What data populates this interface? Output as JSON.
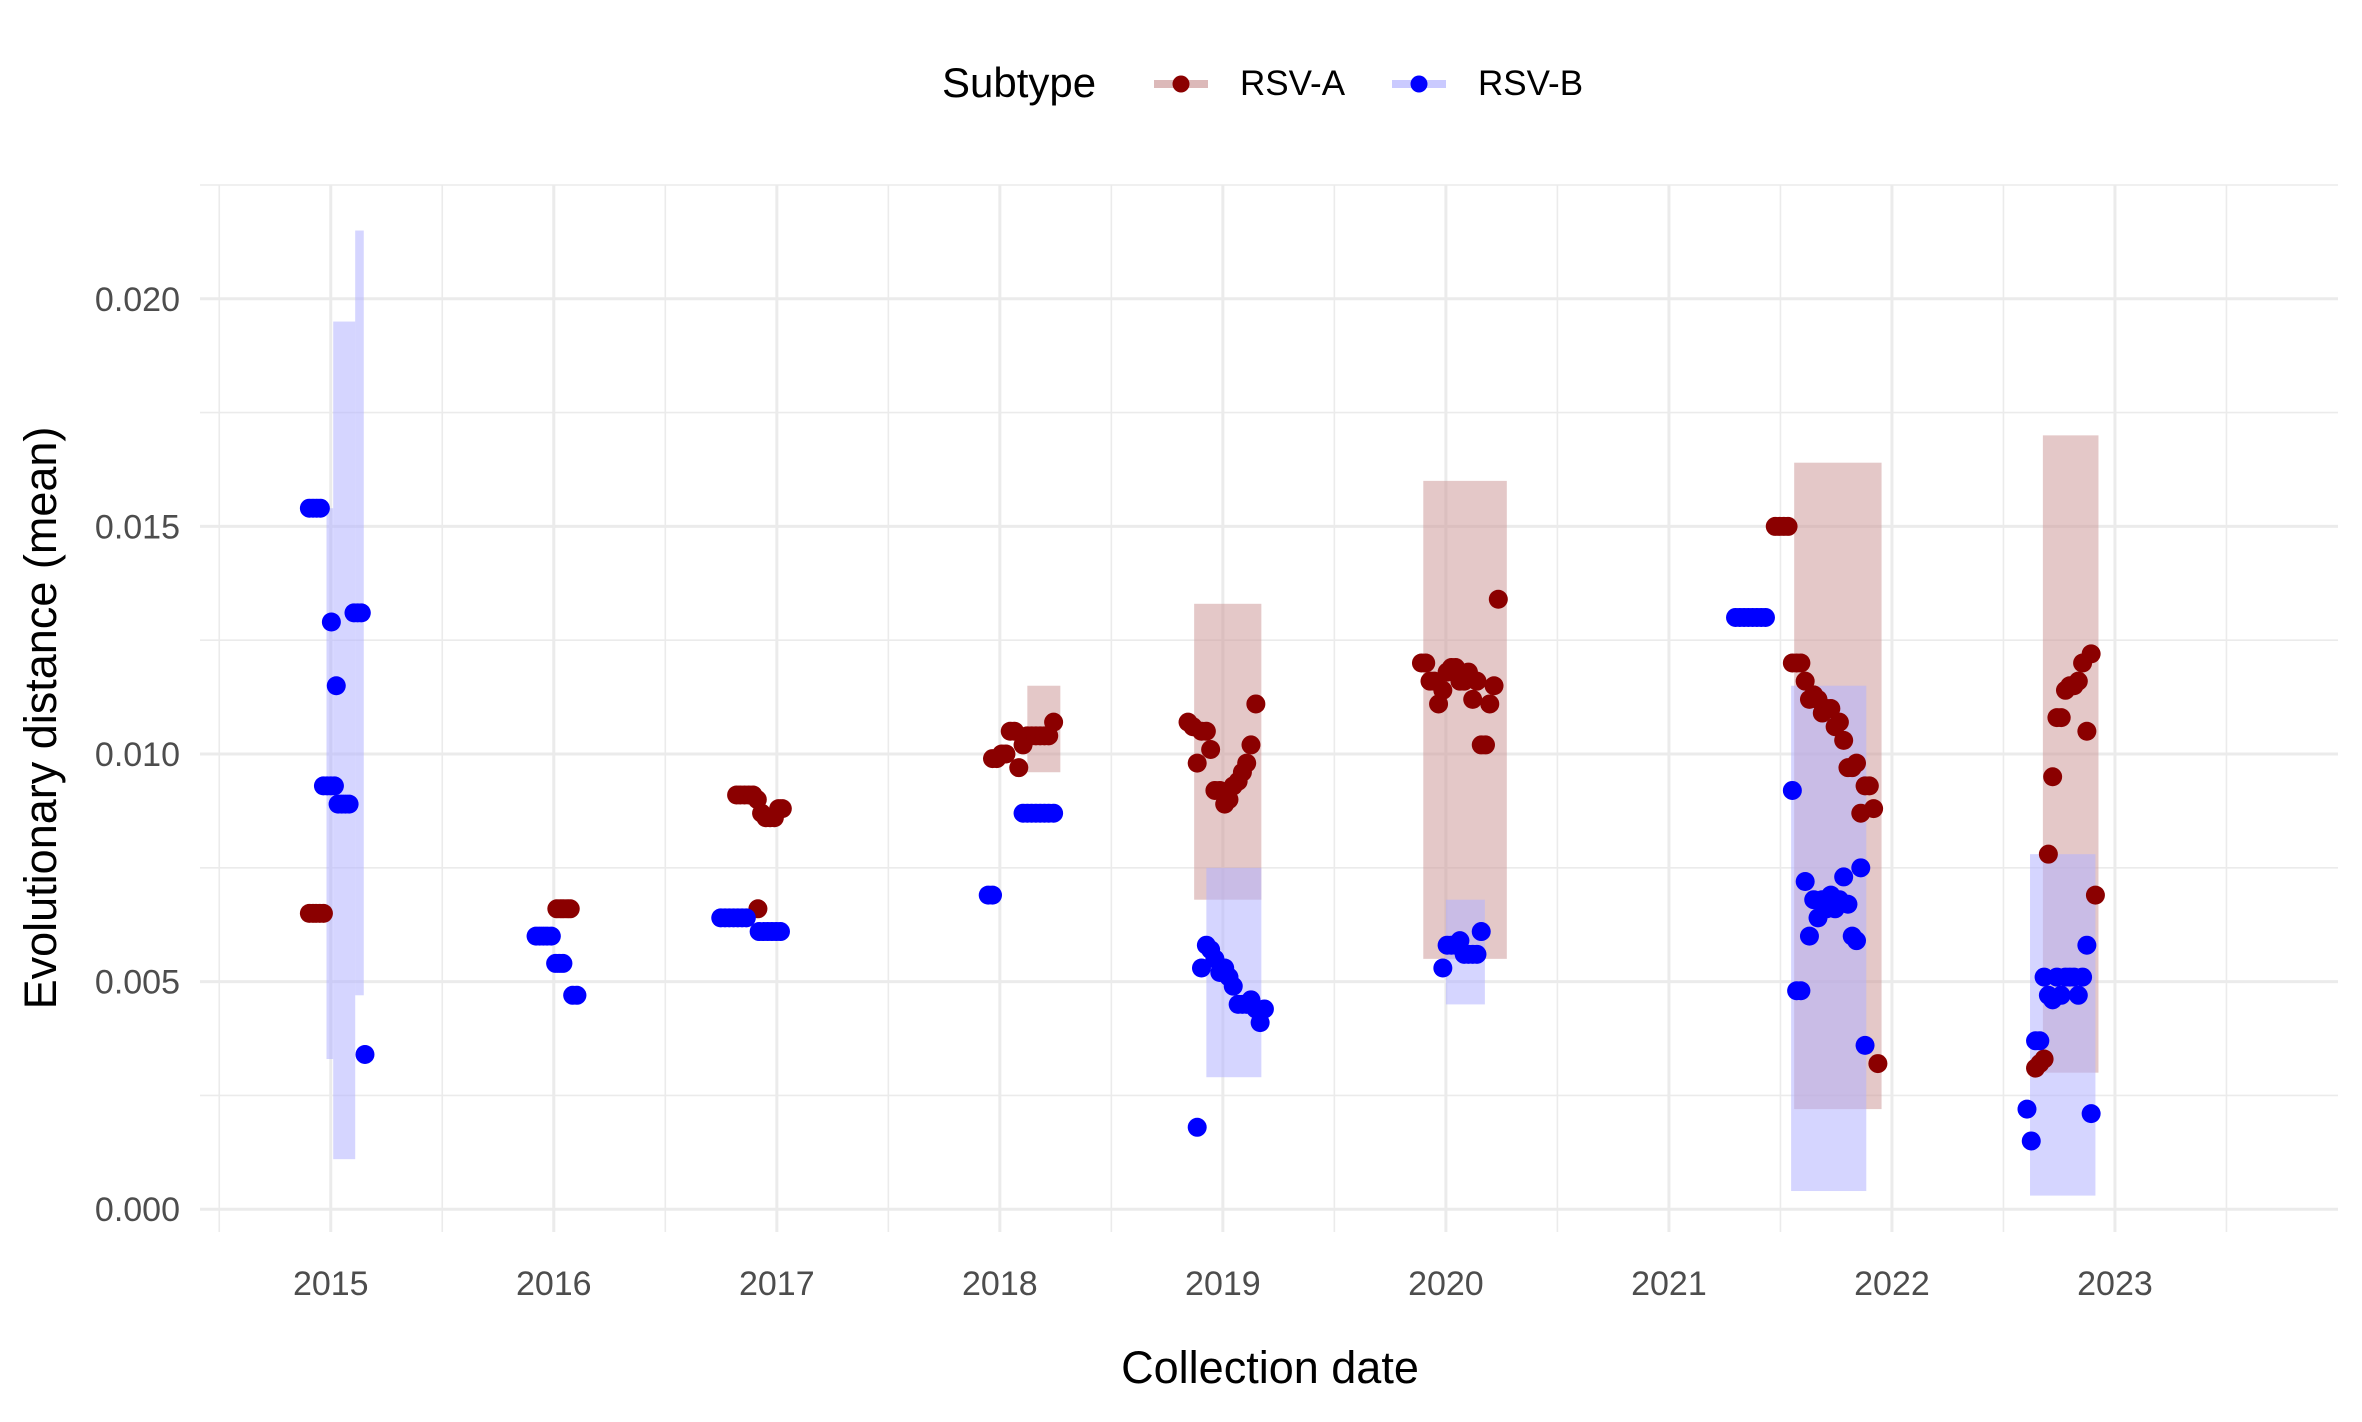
{
  "chart_data": {
    "type": "scatter",
    "title": "",
    "xlabel": "Collection date",
    "ylabel": "Evolutionary distance (mean)",
    "x_ticks": [
      "2015",
      "2016",
      "2017",
      "2018",
      "2019",
      "2020",
      "2021",
      "2022",
      "2023"
    ],
    "y_ticks": [
      "0.000",
      "0.005",
      "0.010",
      "0.015",
      "0.020"
    ],
    "xlim": [
      "2014-06-01",
      "2024-01-01"
    ],
    "ylim": [
      -0.0005,
      0.0225
    ],
    "grid": true,
    "legend": {
      "title": "Subtype",
      "position": "top"
    },
    "series": [
      {
        "name": "RSV-A",
        "color": "#8b0000",
        "band_color": "#cd9b9b",
        "points": [
          [
            "2014-11-27",
            0.0065
          ],
          [
            "2014-12-03",
            0.0065
          ],
          [
            "2014-12-08",
            0.0065
          ],
          [
            "2014-12-14",
            0.0065
          ],
          [
            "2014-12-20",
            0.0065
          ],
          [
            "2016-12-01",
            0.0066
          ],
          [
            "2016-01-06",
            0.0066
          ],
          [
            "2016-01-12",
            0.0066
          ],
          [
            "2016-01-17",
            0.0066
          ],
          [
            "2016-01-23",
            0.0066
          ],
          [
            "2016-01-28",
            0.0066
          ],
          [
            "2016-10-27",
            0.0091
          ],
          [
            "2016-11-02",
            0.0091
          ],
          [
            "2016-11-09",
            0.0091
          ],
          [
            "2016-11-16",
            0.0091
          ],
          [
            "2016-11-23",
            0.0091
          ],
          [
            "2016-11-30",
            0.009
          ],
          [
            "2016-12-07",
            0.0087
          ],
          [
            "2016-12-14",
            0.0086
          ],
          [
            "2016-12-21",
            0.0086
          ],
          [
            "2016-12-28",
            0.0086
          ],
          [
            "2017-01-04",
            0.0088
          ],
          [
            "2017-01-10",
            0.0088
          ],
          [
            "2017-12-20",
            0.0099
          ],
          [
            "2017-12-27",
            0.0099
          ],
          [
            "2018-01-04",
            0.01
          ],
          [
            "2018-01-11",
            0.01
          ],
          [
            "2018-01-18",
            0.0105
          ],
          [
            "2018-01-25",
            0.0105
          ],
          [
            "2018-02-01",
            0.0097
          ],
          [
            "2018-02-08",
            0.0102
          ],
          [
            "2018-02-15",
            0.0104
          ],
          [
            "2018-02-22",
            0.0104
          ],
          [
            "2018-03-01",
            0.0104
          ],
          [
            "2018-03-08",
            0.0104
          ],
          [
            "2018-03-15",
            0.0104
          ],
          [
            "2018-03-22",
            0.0104
          ],
          [
            "2018-03-30",
            0.0107
          ],
          [
            "2018-11-05",
            0.0107
          ],
          [
            "2018-11-13",
            0.0106
          ],
          [
            "2018-11-20",
            0.0098
          ],
          [
            "2018-11-27",
            0.0105
          ],
          [
            "2018-12-05",
            0.0105
          ],
          [
            "2018-12-12",
            0.0101
          ],
          [
            "2018-12-19",
            0.0092
          ],
          [
            "2018-12-27",
            0.0092
          ],
          [
            "2019-01-04",
            0.0089
          ],
          [
            "2019-01-11",
            0.009
          ],
          [
            "2019-01-18",
            0.0093
          ],
          [
            "2019-01-26",
            0.0094
          ],
          [
            "2019-02-02",
            0.0096
          ],
          [
            "2019-02-09",
            0.0098
          ],
          [
            "2019-02-16",
            0.0102
          ],
          [
            "2019-02-24",
            0.0111
          ],
          [
            "2019-11-22",
            0.012
          ],
          [
            "2019-11-29",
            0.012
          ],
          [
            "2019-12-06",
            0.0116
          ],
          [
            "2019-12-13",
            0.0116
          ],
          [
            "2019-12-20",
            0.0111
          ],
          [
            "2019-12-27",
            0.0114
          ],
          [
            "2020-01-03",
            0.0118
          ],
          [
            "2020-01-10",
            0.0119
          ],
          [
            "2020-01-17",
            0.0119
          ],
          [
            "2020-01-24",
            0.0116
          ],
          [
            "2020-01-31",
            0.0116
          ],
          [
            "2020-02-07",
            0.0118
          ],
          [
            "2020-02-14",
            0.0112
          ],
          [
            "2020-02-21",
            0.0116
          ],
          [
            "2020-02-28",
            0.0102
          ],
          [
            "2020-03-06",
            0.0102
          ],
          [
            "2020-03-13",
            0.0111
          ],
          [
            "2020-03-20",
            0.0115
          ],
          [
            "2020-03-27",
            0.0134
          ],
          [
            "2021-06-24",
            0.015
          ],
          [
            "2021-07-01",
            0.015
          ],
          [
            "2021-07-08",
            0.015
          ],
          [
            "2021-07-15",
            0.015
          ],
          [
            "2021-07-22",
            0.012
          ],
          [
            "2021-07-29",
            0.012
          ],
          [
            "2021-08-05",
            0.012
          ],
          [
            "2021-08-12",
            0.0116
          ],
          [
            "2021-08-19",
            0.0112
          ],
          [
            "2021-08-26",
            0.0113
          ],
          [
            "2021-09-02",
            0.0112
          ],
          [
            "2021-09-09",
            0.0109
          ],
          [
            "2021-09-16",
            0.011
          ],
          [
            "2021-09-23",
            0.011
          ],
          [
            "2021-09-30",
            0.0106
          ],
          [
            "2021-10-07",
            0.0107
          ],
          [
            "2021-10-14",
            0.0103
          ],
          [
            "2021-10-21",
            0.0097
          ],
          [
            "2021-10-28",
            0.0097
          ],
          [
            "2021-11-04",
            0.0098
          ],
          [
            "2021-11-11",
            0.0087
          ],
          [
            "2021-11-18",
            0.0093
          ],
          [
            "2021-11-25",
            0.0093
          ],
          [
            "2021-12-02",
            0.0088
          ],
          [
            "2021-12-09",
            0.0032
          ],
          [
            "2022-08-24",
            0.0031
          ],
          [
            "2022-08-31",
            0.0032
          ],
          [
            "2022-09-07",
            0.0033
          ],
          [
            "2022-09-14",
            0.0078
          ],
          [
            "2022-09-21",
            0.0095
          ],
          [
            "2022-09-28",
            0.0108
          ],
          [
            "2022-10-05",
            0.0108
          ],
          [
            "2022-10-12",
            0.0114
          ],
          [
            "2022-10-19",
            0.0115
          ],
          [
            "2022-10-26",
            0.0115
          ],
          [
            "2022-11-02",
            0.0116
          ],
          [
            "2022-11-09",
            0.012
          ],
          [
            "2022-11-16",
            0.0105
          ],
          [
            "2022-11-23",
            0.0122
          ],
          [
            "2022-11-30",
            0.0069
          ]
        ],
        "bands": [
          [
            "2018-02-15",
            "2018-04-10",
            0.0096,
            0.0115
          ],
          [
            "2018-11-15",
            "2019-03-05",
            0.0068,
            0.0133
          ],
          [
            "2019-11-25",
            "2020-04-10",
            0.0055,
            0.016
          ],
          [
            "2021-07-25",
            "2021-12-15",
            0.0022,
            0.0164
          ],
          [
            "2022-09-05",
            "2022-12-05",
            0.003,
            0.017
          ]
        ]
      },
      {
        "name": "RSV-B",
        "color": "#0000ff",
        "band_color": "#b3b3ff",
        "points": [
          [
            "2014-11-27",
            0.0154
          ],
          [
            "2014-12-03",
            0.0154
          ],
          [
            "2014-12-09",
            0.0154
          ],
          [
            "2014-12-15",
            0.0154
          ],
          [
            "2014-12-20",
            0.0093
          ],
          [
            "2014-12-26",
            0.0093
          ],
          [
            "2015-01-01",
            0.0093
          ],
          [
            "2015-01-07",
            0.0093
          ],
          [
            "2015-01-02",
            0.0129
          ],
          [
            "2015-01-13",
            0.0089
          ],
          [
            "2015-01-19",
            0.0089
          ],
          [
            "2015-01-25",
            0.0089
          ],
          [
            "2015-01-31",
            0.0089
          ],
          [
            "2015-01-10",
            0.0115
          ],
          [
            "2015-02-08",
            0.0131
          ],
          [
            "2015-02-14",
            0.0131
          ],
          [
            "2015-02-20",
            0.0131
          ],
          [
            "2015-02-26",
            0.0034
          ],
          [
            "2015-12-03",
            0.006
          ],
          [
            "2015-12-09",
            0.006
          ],
          [
            "2015-12-15",
            0.006
          ],
          [
            "2015-12-21",
            0.006
          ],
          [
            "2015-12-28",
            0.006
          ],
          [
            "2016-01-04",
            0.0054
          ],
          [
            "2016-01-10",
            0.0054
          ],
          [
            "2016-01-16",
            0.0054
          ],
          [
            "2016-02-01",
            0.0047
          ],
          [
            "2016-02-08",
            0.0047
          ],
          [
            "2016-10-01",
            0.0064
          ],
          [
            "2016-10-08",
            0.0064
          ],
          [
            "2016-10-15",
            0.0064
          ],
          [
            "2016-10-22",
            0.0064
          ],
          [
            "2016-10-29",
            0.0064
          ],
          [
            "2016-11-05",
            0.0064
          ],
          [
            "2016-11-12",
            0.0064
          ],
          [
            "2016-12-03",
            0.0061
          ],
          [
            "2016-12-10",
            0.0061
          ],
          [
            "2016-12-17",
            0.0061
          ],
          [
            "2016-12-24",
            0.0061
          ],
          [
            "2016-12-31",
            0.0061
          ],
          [
            "2017-01-07",
            0.0061
          ],
          [
            "2017-12-13",
            0.0069
          ],
          [
            "2017-12-20",
            0.0069
          ],
          [
            "2018-02-08",
            0.0087
          ],
          [
            "2018-02-15",
            0.0087
          ],
          [
            "2018-02-22",
            0.0087
          ],
          [
            "2018-03-01",
            0.0087
          ],
          [
            "2018-03-08",
            0.0087
          ],
          [
            "2018-03-15",
            0.0087
          ],
          [
            "2018-03-22",
            0.0087
          ],
          [
            "2018-03-30",
            0.0087
          ],
          [
            "2018-11-20",
            0.0018
          ],
          [
            "2018-11-27",
            0.0053
          ],
          [
            "2018-12-05",
            0.0058
          ],
          [
            "2018-12-12",
            0.0057
          ],
          [
            "2018-12-19",
            0.0055
          ],
          [
            "2018-12-27",
            0.0052
          ],
          [
            "2019-01-04",
            0.0053
          ],
          [
            "2019-01-11",
            0.0051
          ],
          [
            "2019-01-18",
            0.0049
          ],
          [
            "2019-01-26",
            0.0045
          ],
          [
            "2019-02-02",
            0.0045
          ],
          [
            "2019-02-09",
            0.0045
          ],
          [
            "2019-02-16",
            0.0046
          ],
          [
            "2019-02-24",
            0.0044
          ],
          [
            "2019-03-03",
            0.0041
          ],
          [
            "2019-03-10",
            0.0044
          ],
          [
            "2019-12-27",
            0.0053
          ],
          [
            "2020-01-03",
            0.0058
          ],
          [
            "2020-01-10",
            0.0058
          ],
          [
            "2020-01-17",
            0.0058
          ],
          [
            "2020-01-24",
            0.0059
          ],
          [
            "2020-01-31",
            0.0056
          ],
          [
            "2020-02-07",
            0.0056
          ],
          [
            "2020-02-14",
            0.0056
          ],
          [
            "2020-02-21",
            0.0056
          ],
          [
            "2020-02-28",
            0.0061
          ],
          [
            "2021-04-20",
            0.013
          ],
          [
            "2021-04-27",
            0.013
          ],
          [
            "2021-05-04",
            0.013
          ],
          [
            "2021-05-11",
            0.013
          ],
          [
            "2021-05-18",
            0.013
          ],
          [
            "2021-05-25",
            0.013
          ],
          [
            "2021-06-01",
            0.013
          ],
          [
            "2021-06-08",
            0.013
          ],
          [
            "2021-07-22",
            0.0092
          ],
          [
            "2021-07-29",
            0.0048
          ],
          [
            "2021-08-05",
            0.0048
          ],
          [
            "2021-08-12",
            0.0072
          ],
          [
            "2021-08-19",
            0.006
          ],
          [
            "2021-08-26",
            0.0068
          ],
          [
            "2021-09-02",
            0.0064
          ],
          [
            "2021-09-09",
            0.0068
          ],
          [
            "2021-09-16",
            0.0066
          ],
          [
            "2021-09-23",
            0.0069
          ],
          [
            "2021-09-30",
            0.0066
          ],
          [
            "2021-10-07",
            0.0068
          ],
          [
            "2021-10-14",
            0.0073
          ],
          [
            "2021-10-21",
            0.0067
          ],
          [
            "2021-10-28",
            0.006
          ],
          [
            "2021-11-04",
            0.0059
          ],
          [
            "2021-11-11",
            0.0075
          ],
          [
            "2021-11-18",
            0.0036
          ],
          [
            "2022-08-10",
            0.0022
          ],
          [
            "2022-08-17",
            0.0015
          ],
          [
            "2022-08-24",
            0.0037
          ],
          [
            "2022-08-31",
            0.0037
          ],
          [
            "2022-09-07",
            0.0051
          ],
          [
            "2022-09-14",
            0.0047
          ],
          [
            "2022-09-21",
            0.0046
          ],
          [
            "2022-09-28",
            0.0051
          ],
          [
            "2022-10-05",
            0.0047
          ],
          [
            "2022-10-12",
            0.0051
          ],
          [
            "2022-10-19",
            0.0051
          ],
          [
            "2022-10-26",
            0.0051
          ],
          [
            "2022-11-02",
            0.0047
          ],
          [
            "2022-11-09",
            0.0051
          ],
          [
            "2022-11-16",
            0.0058
          ],
          [
            "2022-11-23",
            0.0021
          ]
        ],
        "bands": [
          [
            "2014-12-25",
            "2015-01-05",
            0.0033,
            0.0154
          ],
          [
            "2015-01-05",
            "2015-02-10",
            0.0011,
            0.0195
          ],
          [
            "2015-02-10",
            "2015-02-24",
            0.0047,
            0.0215
          ],
          [
            "2018-12-05",
            "2019-03-05",
            0.0029,
            0.0075
          ],
          [
            "2020-01-01",
            "2020-03-05",
            0.0045,
            0.0068
          ],
          [
            "2021-07-20",
            "2021-11-20",
            0.0004,
            0.0115
          ],
          [
            "2022-08-15",
            "2022-11-30",
            0.0003,
            0.0078
          ]
        ]
      }
    ]
  }
}
